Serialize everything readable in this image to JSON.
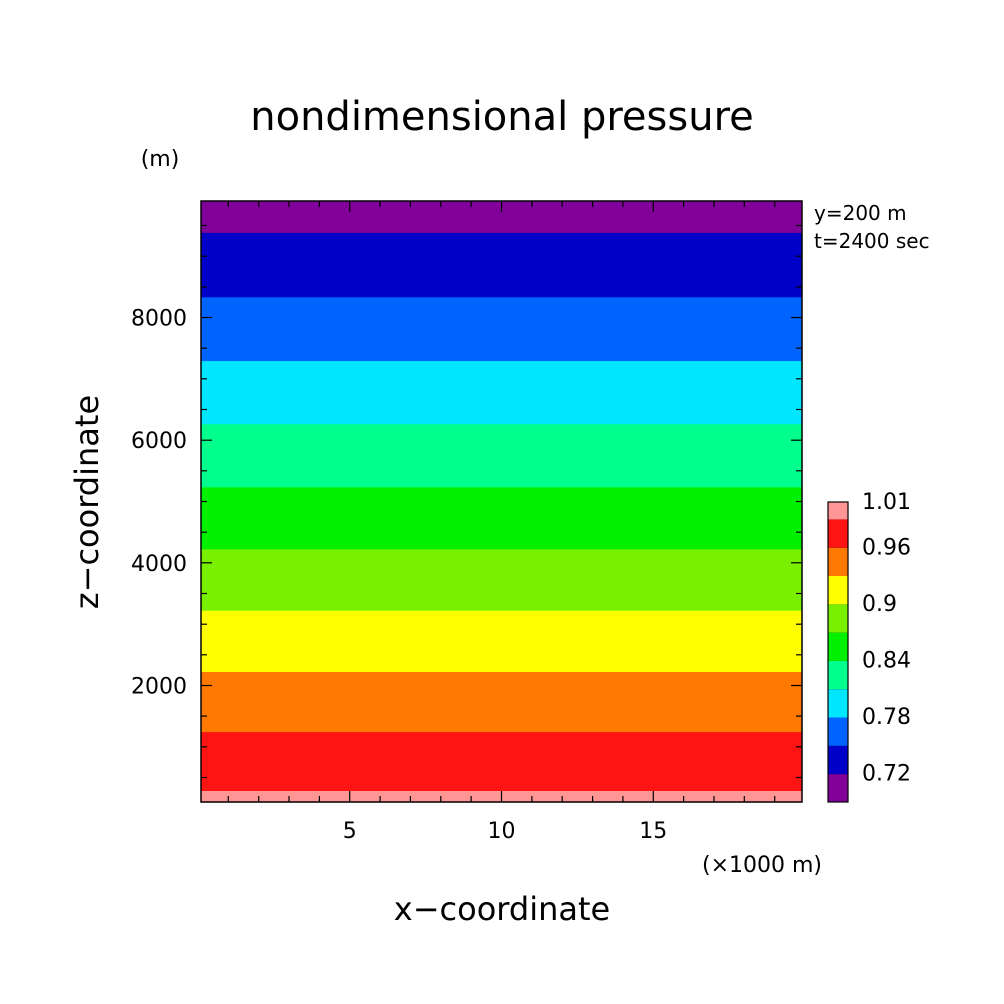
{
  "chart_data": {
    "type": "heatmap",
    "title": "nondimensional pressure",
    "xlabel": "x−coordinate",
    "ylabel": "z−coordinate",
    "x_unit": "(×1000 m)",
    "y_unit": "(m)",
    "annotations": [
      "y=200 m",
      "t=2400 sec"
    ],
    "xlim": [
      0.1,
      19.9
    ],
    "ylim": [
      100,
      9900
    ],
    "x_ticks": [
      5,
      10,
      15
    ],
    "x_tick_labels": [
      "5",
      "10",
      "15"
    ],
    "y_ticks": [
      2000,
      4000,
      6000,
      8000
    ],
    "y_tick_labels": [
      "2000",
      "4000",
      "6000",
      "8000"
    ],
    "contour_levels": [
      0.69,
      0.72,
      0.75,
      0.78,
      0.81,
      0.84,
      0.87,
      0.9,
      0.93,
      0.96,
      0.99,
      1.01
    ],
    "band_colors": [
      "#800099",
      "#0000c8",
      "#0064ff",
      "#00e6ff",
      "#00ff8c",
      "#00f000",
      "#78f000",
      "#ffff00",
      "#ff7800",
      "#ff1414",
      "#ff9696"
    ],
    "bands": [
      {
        "range": [
          0.69,
          0.72
        ],
        "color": "#800099",
        "z": [
          9380,
          9900
        ]
      },
      {
        "range": [
          0.72,
          0.75
        ],
        "color": "#0000c8",
        "z": [
          8330,
          9380
        ]
      },
      {
        "range": [
          0.75,
          0.78
        ],
        "color": "#0064ff",
        "z": [
          7290,
          8330
        ]
      },
      {
        "range": [
          0.78,
          0.81
        ],
        "color": "#00e6ff",
        "z": [
          6260,
          7290
        ]
      },
      {
        "range": [
          0.81,
          0.84
        ],
        "color": "#00ff8c",
        "z": [
          5230,
          6260
        ]
      },
      {
        "range": [
          0.84,
          0.87
        ],
        "color": "#00f000",
        "z": [
          4220,
          5230
        ]
      },
      {
        "range": [
          0.87,
          0.9
        ],
        "color": "#78f000",
        "z": [
          3220,
          4220
        ]
      },
      {
        "range": [
          0.9,
          0.93
        ],
        "color": "#ffff00",
        "z": [
          2220,
          3220
        ]
      },
      {
        "range": [
          0.93,
          0.96
        ],
        "color": "#ff7800",
        "z": [
          1240,
          2220
        ]
      },
      {
        "range": [
          0.96,
          0.99
        ],
        "color": "#ff1414",
        "z": [
          280,
          1240
        ]
      },
      {
        "range": [
          0.99,
          1.01
        ],
        "color": "#ff9696",
        "z": [
          100,
          280
        ]
      }
    ],
    "colorbar_labels": [
      {
        "text": "1.01",
        "level": 1.01
      },
      {
        "text": "0.96",
        "level": 0.96
      },
      {
        "text": "0.9",
        "level": 0.9
      },
      {
        "text": "0.84",
        "level": 0.84
      },
      {
        "text": "0.78",
        "level": 0.78
      },
      {
        "text": "0.72",
        "level": 0.72
      }
    ],
    "grid": false,
    "legend_position": "right"
  }
}
